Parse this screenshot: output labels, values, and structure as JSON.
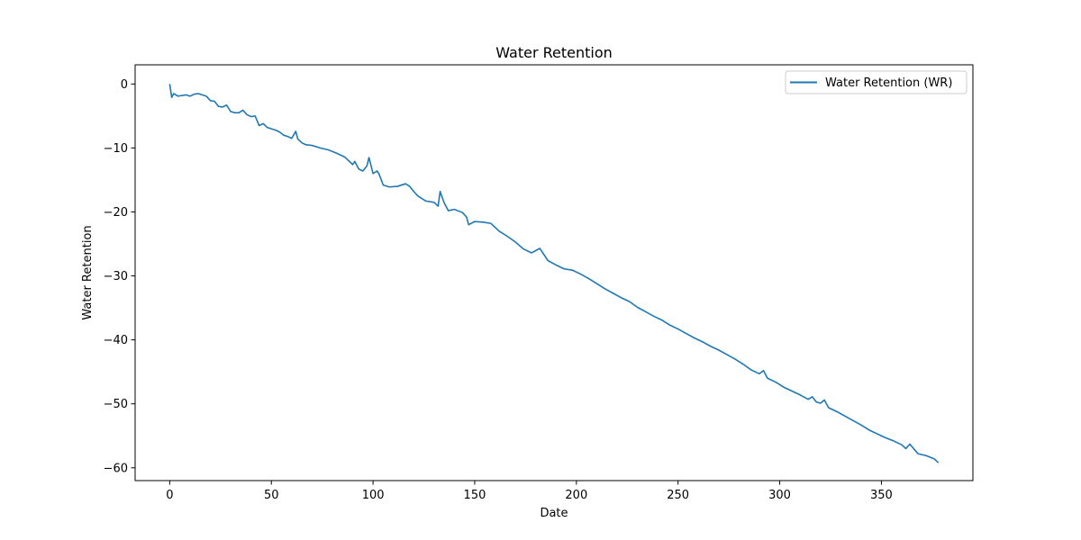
{
  "chart_data": {
    "type": "line",
    "title": "Water Retention",
    "xlabel": "Date",
    "ylabel": "Water Retention",
    "xlim": [
      -17,
      395
    ],
    "ylim": [
      -62,
      3
    ],
    "x_ticks": [
      0,
      50,
      100,
      150,
      200,
      250,
      300,
      350
    ],
    "y_ticks": [
      0,
      -10,
      -20,
      -30,
      -40,
      -50,
      -60
    ],
    "grid": false,
    "legend": {
      "position": "top-right",
      "entries": [
        "Water Retention (WR)"
      ]
    },
    "series": [
      {
        "name": "Water Retention (WR)",
        "color": "#1f77b4",
        "x": [
          0,
          1,
          2,
          4,
          6,
          8,
          10,
          12,
          14,
          16,
          18,
          20,
          22,
          24,
          26,
          28,
          30,
          32,
          34,
          36,
          38,
          40,
          42,
          44,
          46,
          48,
          50,
          52,
          54,
          56,
          58,
          60,
          62,
          63,
          65,
          67,
          70,
          74,
          78,
          82,
          86,
          90,
          91,
          93,
          95,
          97,
          98,
          100,
          102,
          103,
          105,
          108,
          112,
          116,
          118,
          120,
          122,
          126,
          130,
          132,
          133,
          135,
          137,
          140,
          144,
          146,
          147,
          150,
          154,
          158,
          162,
          166,
          170,
          174,
          178,
          182,
          186,
          190,
          194,
          198,
          202,
          206,
          210,
          214,
          218,
          222,
          226,
          230,
          234,
          238,
          242,
          246,
          250,
          254,
          258,
          262,
          266,
          270,
          274,
          278,
          282,
          286,
          290,
          292,
          294,
          298,
          302,
          306,
          310,
          314,
          316,
          318,
          320,
          322,
          324,
          328,
          332,
          336,
          340,
          344,
          348,
          352,
          356,
          360,
          362,
          364,
          368,
          372,
          376,
          378
        ],
        "y": [
          0,
          -2.1,
          -1.5,
          -1.9,
          -1.8,
          -1.7,
          -1.9,
          -1.6,
          -1.5,
          -1.7,
          -1.9,
          -2.6,
          -2.7,
          -3.5,
          -3.6,
          -3.3,
          -4.3,
          -4.5,
          -4.5,
          -4.1,
          -4.8,
          -5.1,
          -5.0,
          -6.5,
          -6.2,
          -6.8,
          -7.0,
          -7.2,
          -7.5,
          -8.0,
          -8.2,
          -8.5,
          -7.4,
          -8.6,
          -9.2,
          -9.5,
          -9.6,
          -10.0,
          -10.3,
          -10.8,
          -11.4,
          -12.6,
          -12.1,
          -13.3,
          -13.6,
          -12.8,
          -11.5,
          -14.0,
          -13.6,
          -14.1,
          -15.8,
          -16.1,
          -16.0,
          -15.6,
          -16.0,
          -16.8,
          -17.5,
          -18.3,
          -18.5,
          -19.1,
          -16.8,
          -18.6,
          -19.8,
          -19.6,
          -20.1,
          -20.8,
          -22.0,
          -21.5,
          -21.6,
          -21.8,
          -23.0,
          -23.8,
          -24.7,
          -25.8,
          -26.4,
          -25.7,
          -27.6,
          -28.3,
          -28.9,
          -29.1,
          -29.7,
          -30.4,
          -31.2,
          -32.0,
          -32.7,
          -33.4,
          -34.0,
          -34.9,
          -35.6,
          -36.3,
          -36.9,
          -37.7,
          -38.3,
          -39.0,
          -39.7,
          -40.3,
          -41.0,
          -41.6,
          -42.3,
          -43.0,
          -43.8,
          -44.7,
          -45.3,
          -44.8,
          -46.0,
          -46.6,
          -47.4,
          -48.0,
          -48.6,
          -49.3,
          -48.9,
          -49.7,
          -49.9,
          -49.4,
          -50.6,
          -51.2,
          -51.9,
          -52.6,
          -53.3,
          -54.1,
          -54.7,
          -55.3,
          -55.8,
          -56.4,
          -57.0,
          -56.3,
          -57.8,
          -58.1,
          -58.6,
          -59.2
        ]
      }
    ]
  }
}
